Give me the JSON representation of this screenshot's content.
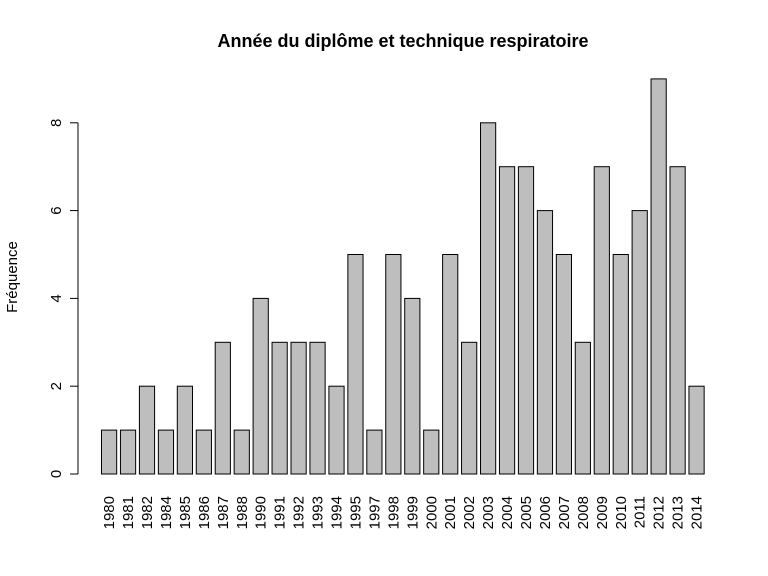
{
  "chart_data": {
    "type": "bar",
    "title": "Année du diplôme et technique respiratoire",
    "xlabel": "",
    "ylabel": "Fréquence",
    "categories": [
      "1980",
      "1981",
      "1982",
      "1984",
      "1985",
      "1986",
      "1987",
      "1988",
      "1990",
      "1991",
      "1992",
      "1993",
      "1994",
      "1995",
      "1997",
      "1998",
      "1999",
      "2000",
      "2001",
      "2002",
      "2003",
      "2004",
      "2005",
      "2006",
      "2007",
      "2008",
      "2009",
      "2010",
      "2011",
      "2012",
      "2013",
      "2014"
    ],
    "values": [
      1,
      1,
      2,
      1,
      2,
      1,
      3,
      1,
      4,
      3,
      3,
      3,
      2,
      5,
      1,
      5,
      4,
      1,
      5,
      3,
      8,
      7,
      7,
      6,
      5,
      3,
      7,
      5,
      6,
      9,
      7,
      2
    ],
    "ylim": [
      0,
      9
    ],
    "yticks": [
      0,
      2,
      4,
      6,
      8
    ],
    "grid": false,
    "bar_color": "#bebebe",
    "x_tick_rotation": "vertical"
  }
}
